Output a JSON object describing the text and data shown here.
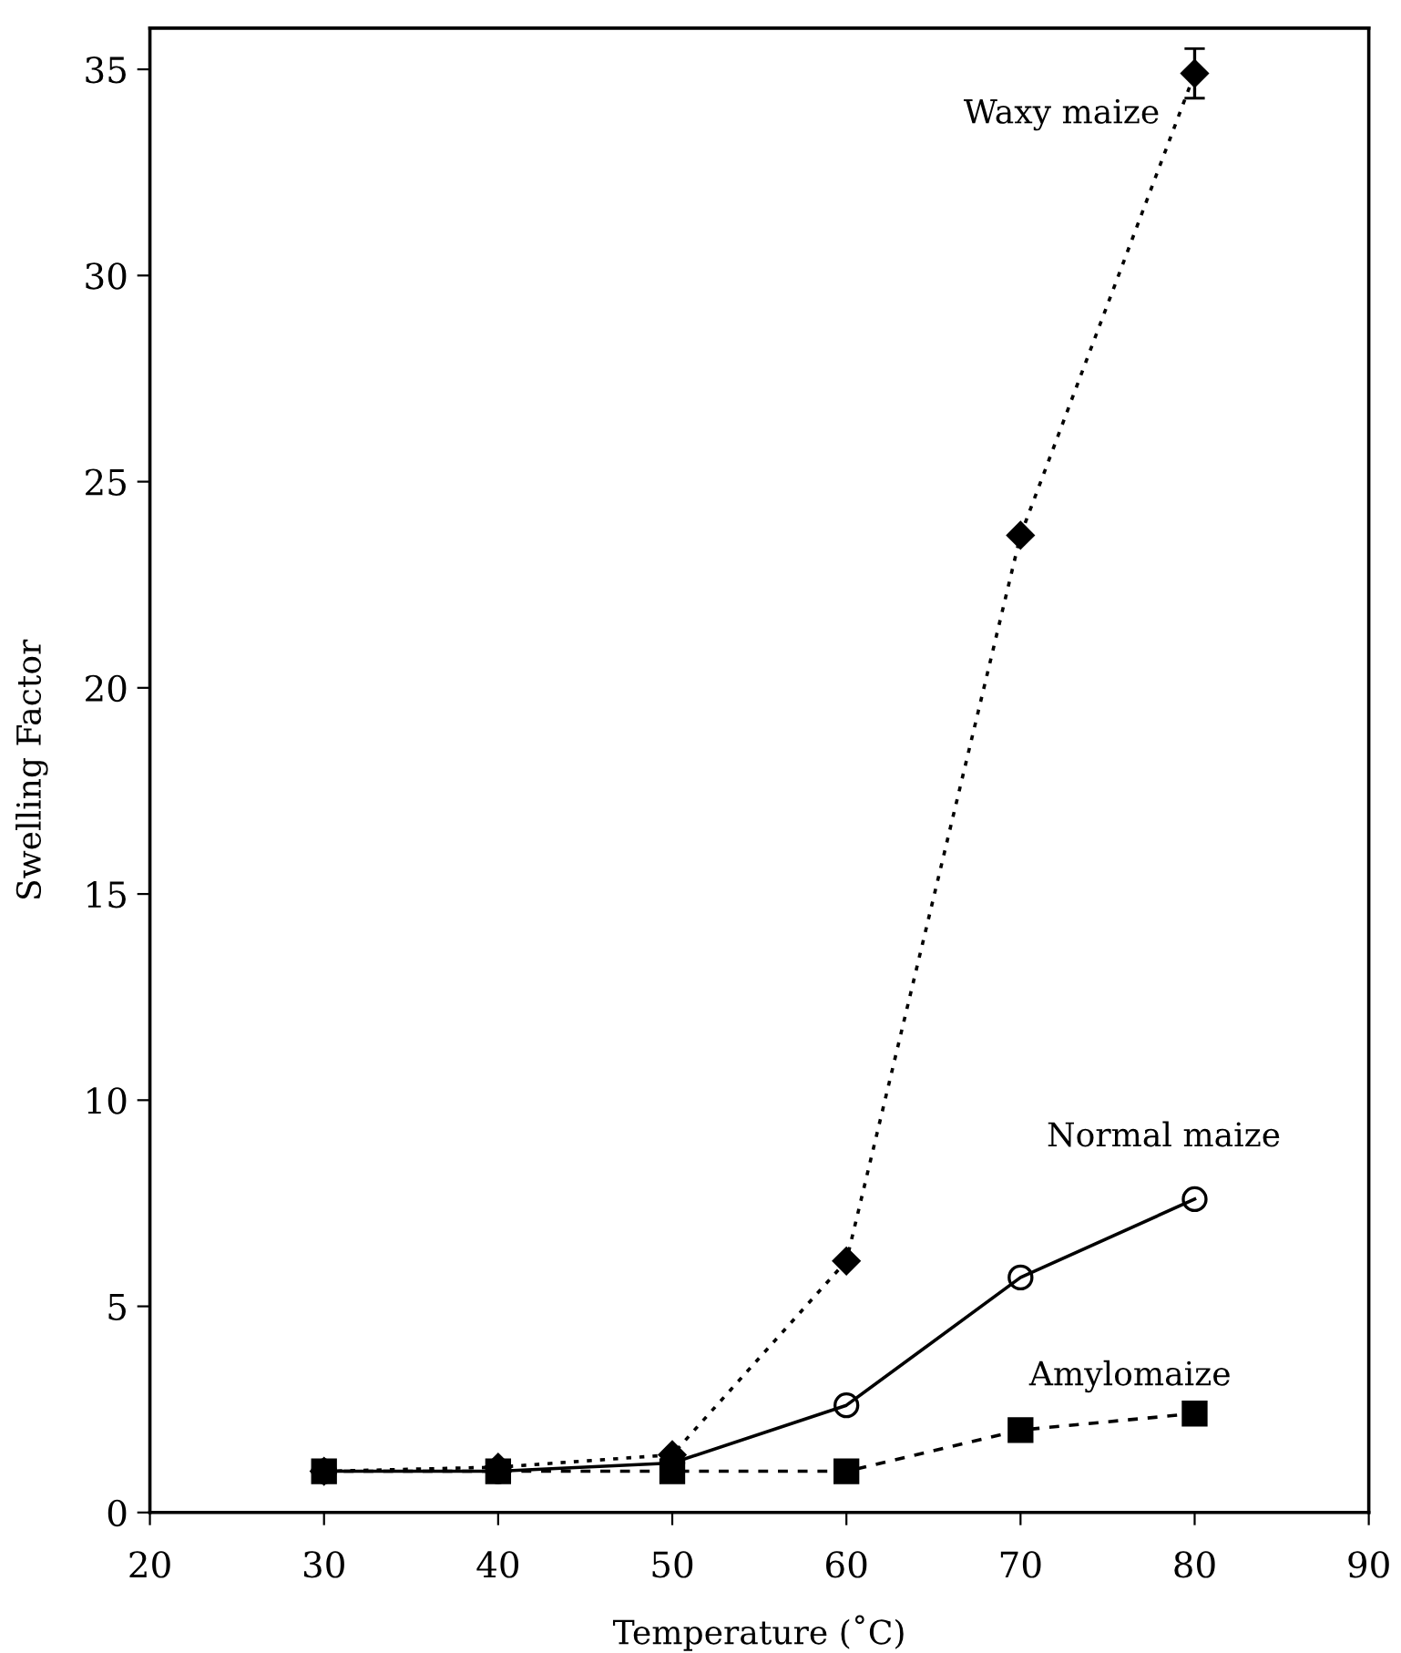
{
  "chart_data": {
    "type": "line",
    "xlabel": "Temperature (˚C)",
    "ylabel": "Swelling Factor",
    "x": [
      30,
      40,
      50,
      60,
      70,
      80
    ],
    "xlim": [
      20,
      90
    ],
    "xticks": [
      20,
      30,
      40,
      50,
      60,
      70,
      80,
      90
    ],
    "ylim": [
      0,
      36
    ],
    "yticks": [
      0,
      5,
      10,
      15,
      20,
      25,
      30,
      35
    ],
    "grid": false,
    "legend": false,
    "series": [
      {
        "name": "Waxy maize",
        "color": "#000000",
        "marker": "diamond",
        "line_style": "dotted",
        "values": [
          1.0,
          1.1,
          1.4,
          6.1,
          23.7,
          34.9
        ],
        "errors": [
          null,
          null,
          null,
          null,
          null,
          0.6
        ]
      },
      {
        "name": "Normal maize",
        "color": "#000000",
        "marker": "circle",
        "line_style": "solid",
        "values": [
          1.0,
          1.0,
          1.2,
          2.6,
          5.7,
          7.6
        ]
      },
      {
        "name": "Amylomaize",
        "color": "#000000",
        "marker": "square",
        "line_style": "dashed",
        "values": [
          1.0,
          1.0,
          1.0,
          1.0,
          2.0,
          2.4
        ]
      }
    ]
  }
}
